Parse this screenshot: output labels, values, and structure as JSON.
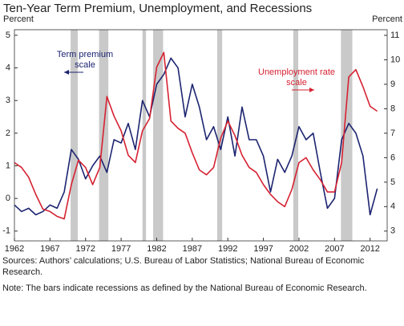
{
  "chart_data": {
    "type": "line",
    "title": "Ten-Year Term Premium, Unemployment, and Recessions",
    "y_label": "Percent",
    "y2_label": "Percent",
    "x": [
      1962,
      1963,
      1964,
      1965,
      1966,
      1967,
      1968,
      1969,
      1970,
      1971,
      1972,
      1973,
      1974,
      1975,
      1976,
      1977,
      1978,
      1979,
      1980,
      1981,
      1982,
      1983,
      1984,
      1985,
      1986,
      1987,
      1988,
      1989,
      1990,
      1991,
      1992,
      1993,
      1994,
      1995,
      1996,
      1997,
      1998,
      1999,
      2000,
      2001,
      2002,
      2003,
      2004,
      2005,
      2006,
      2007,
      2008,
      2009,
      2010,
      2011,
      2012,
      2013
    ],
    "xlim": [
      1962,
      2014.4
    ],
    "xticks": [
      1962,
      1967,
      1972,
      1977,
      1982,
      1987,
      1992,
      1997,
      2002,
      2007,
      2012
    ],
    "ylim": [
      -1.3,
      5.17
    ],
    "yticks": [
      -1,
      0,
      1,
      2,
      3,
      4,
      5
    ],
    "y2lim": [
      2.6,
      11.23
    ],
    "y2ticks": [
      3,
      4,
      5,
      6,
      7,
      8,
      9,
      10,
      11
    ],
    "series": [
      {
        "name": "Term premium",
        "color": "#1c2470",
        "axis": "y",
        "values": [
          -0.2,
          -0.4,
          -0.3,
          -0.5,
          -0.4,
          -0.2,
          -0.3,
          0.2,
          1.5,
          1.2,
          0.6,
          1.0,
          1.3,
          0.8,
          1.8,
          1.7,
          2.3,
          1.5,
          3.0,
          2.5,
          3.5,
          3.8,
          4.3,
          4.0,
          2.5,
          3.5,
          2.8,
          1.8,
          2.2,
          1.5,
          2.5,
          1.3,
          2.8,
          1.8,
          1.8,
          1.3,
          0.2,
          1.2,
          0.8,
          1.3,
          2.2,
          1.8,
          2.0,
          0.8,
          -0.3,
          0.0,
          1.8,
          2.3,
          2.0,
          1.3,
          -0.5,
          0.3
        ]
      },
      {
        "name": "Unemployment rate",
        "color": "#d62232",
        "axis": "y2",
        "values": [
          5.8,
          5.6,
          5.2,
          4.5,
          3.9,
          3.8,
          3.6,
          3.5,
          4.9,
          5.9,
          5.6,
          4.9,
          5.6,
          8.5,
          7.7,
          7.1,
          6.1,
          5.8,
          7.1,
          7.6,
          9.7,
          10.3,
          7.5,
          7.2,
          7.0,
          6.2,
          5.5,
          5.3,
          5.6,
          6.8,
          7.5,
          6.9,
          6.1,
          5.6,
          5.4,
          4.9,
          4.5,
          4.2,
          4.0,
          4.7,
          5.8,
          6.0,
          5.5,
          5.1,
          4.6,
          4.6,
          5.8,
          9.3,
          9.6,
          8.9,
          8.1,
          7.9
        ]
      }
    ],
    "recessions": [
      [
        1969.9,
        1970.9
      ],
      [
        1973.9,
        1975.2
      ],
      [
        1980.0,
        1980.5
      ],
      [
        1981.5,
        1982.9
      ],
      [
        1990.5,
        1991.2
      ],
      [
        2001.2,
        2001.9
      ],
      [
        2007.9,
        2009.5
      ]
    ],
    "recession_color": "#c9c9c9",
    "annotations": [
      {
        "lines": [
          "Term premium",
          "scale"
        ],
        "series": 0
      },
      {
        "lines": [
          "Unemployment rate",
          "scale"
        ],
        "series": 1
      }
    ],
    "sources": "Sources: Authors’ calculations; U.S. Bureau of Labor Statistics; National Bureau of Economic Research.",
    "note": "Note: The bars indicate recessions as defined by the National Bureau of Economic Research."
  }
}
